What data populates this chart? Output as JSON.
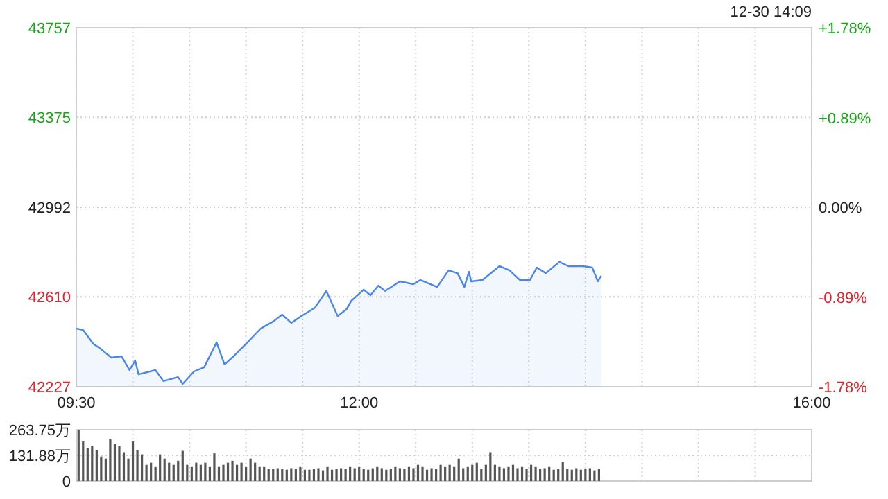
{
  "chart_data": [
    {
      "type": "area",
      "annotations": [
        "12-30 14:09"
      ],
      "x": [
        9.5,
        9.56,
        9.65,
        9.72,
        9.81,
        9.9,
        9.97,
        10.02,
        10.05,
        10.2,
        10.27,
        10.4,
        10.44,
        10.54,
        10.63,
        10.74,
        10.81,
        10.89,
        11.0,
        11.13,
        11.24,
        11.32,
        11.4,
        11.49,
        11.61,
        11.71,
        11.81,
        11.89,
        11.93,
        12.04,
        12.1,
        12.17,
        12.23,
        12.36,
        12.48,
        12.54,
        12.69,
        12.79,
        12.87,
        12.93,
        12.97,
        12.99,
        13.09,
        13.24,
        13.33,
        13.42,
        13.51,
        13.57,
        13.65,
        13.77,
        13.85,
        13.98,
        14.06,
        14.11,
        14.14
      ],
      "series": [
        {
          "color": "#4a86e8",
          "values": [
            42475,
            42469,
            42410,
            42387,
            42351,
            42357,
            42298,
            42339,
            42280,
            42298,
            42251,
            42268,
            42239,
            42292,
            42310,
            42416,
            42322,
            42357,
            42410,
            42475,
            42505,
            42534,
            42499,
            42528,
            42564,
            42635,
            42528,
            42558,
            42593,
            42641,
            42617,
            42658,
            42635,
            42676,
            42664,
            42682,
            42652,
            42723,
            42711,
            42652,
            42717,
            42676,
            42682,
            42741,
            42723,
            42682,
            42682,
            42735,
            42711,
            42759,
            42741,
            42741,
            42735,
            42676,
            42700
          ]
        }
      ],
      "xlim": [
        9.5,
        16
      ],
      "xticks": [
        {
          "value": 9.5,
          "label": "09:30"
        },
        {
          "value": 10,
          "label": null
        },
        {
          "value": 10.5,
          "label": null
        },
        {
          "value": 11,
          "label": null
        },
        {
          "value": 11.5,
          "label": null
        },
        {
          "value": 12,
          "label": "12:00"
        },
        {
          "value": 12.5,
          "label": null
        },
        {
          "value": 13,
          "label": null
        },
        {
          "value": 13.5,
          "label": null
        },
        {
          "value": 14,
          "label": null
        },
        {
          "value": 14.5,
          "label": null
        },
        {
          "value": 15,
          "label": null
        },
        {
          "value": 15.5,
          "label": null
        },
        {
          "value": 16,
          "label": "16:00"
        }
      ],
      "ylim": [
        42227,
        43757
      ],
      "yticks": [
        42227,
        42610,
        42992,
        43375,
        43757
      ],
      "y2lim": [
        -1.78,
        1.78
      ],
      "y2ticks": [
        {
          "value": -1.78,
          "label": "-1.78%"
        },
        {
          "value": -0.89,
          "label": "-0.89%"
        },
        {
          "value": 0,
          "label": "0.00%"
        },
        {
          "value": 0.89,
          "label": "+0.89%"
        },
        {
          "value": 1.78,
          "label": "+1.78%"
        }
      ],
      "grid": true
    },
    {
      "type": "bar",
      "tick_labels": "y",
      "x": [
        9.52,
        9.56,
        9.6,
        9.64,
        9.68,
        9.72,
        9.76,
        9.8,
        9.84,
        9.88,
        9.92,
        9.96,
        10,
        10.04,
        10.08,
        10.12,
        10.16,
        10.2,
        10.24,
        10.28,
        10.32,
        10.36,
        10.4,
        10.44,
        10.48,
        10.52,
        10.56,
        10.6,
        10.64,
        10.68,
        10.72,
        10.76,
        10.8,
        10.84,
        10.88,
        10.92,
        10.96,
        11,
        11.04,
        11.08,
        11.12,
        11.16,
        11.2,
        11.24,
        11.28,
        11.32,
        11.36,
        11.4,
        11.44,
        11.48,
        11.52,
        11.56,
        11.6,
        11.64,
        11.68,
        11.72,
        11.76,
        11.8,
        11.84,
        11.88,
        11.92,
        11.96,
        12,
        12.04,
        12.08,
        12.12,
        12.16,
        12.2,
        12.24,
        12.28,
        12.32,
        12.36,
        12.4,
        12.44,
        12.48,
        12.52,
        12.56,
        12.6,
        12.64,
        12.68,
        12.72,
        12.76,
        12.8,
        12.84,
        12.88,
        12.92,
        12.96,
        13,
        13.04,
        13.08,
        13.12,
        13.16,
        13.2,
        13.24,
        13.28,
        13.32,
        13.36,
        13.4,
        13.44,
        13.48,
        13.52,
        13.56,
        13.6,
        13.64,
        13.68,
        13.72,
        13.76,
        13.8,
        13.84,
        13.88,
        13.92,
        13.96,
        14,
        14.04,
        14.08,
        14.12
      ],
      "series": [
        {
          "color": "#555555",
          "values": [
            263,
            203,
            170,
            181,
            159,
            126,
            115,
            214,
            192,
            181,
            148,
            115,
            203,
            159,
            137,
            83,
            94,
            72,
            137,
            115,
            94,
            83,
            104,
            155,
            83,
            72,
            94,
            83,
            94,
            72,
            142,
            72,
            83,
            94,
            104,
            83,
            94,
            72,
            115,
            94,
            72,
            72,
            62,
            62,
            66,
            62,
            58,
            66,
            62,
            72,
            58,
            58,
            62,
            66,
            55,
            72,
            58,
            62,
            66,
            62,
            72,
            66,
            72,
            62,
            58,
            66,
            72,
            66,
            58,
            62,
            72,
            66,
            62,
            72,
            66,
            83,
            72,
            58,
            66,
            62,
            83,
            72,
            83,
            72,
            115,
            66,
            72,
            83,
            94,
            62,
            83,
            148,
            83,
            72,
            66,
            72,
            83,
            66,
            72,
            62,
            83,
            72,
            62,
            66,
            72,
            58,
            62,
            98,
            62,
            58,
            66,
            58,
            62,
            66,
            55,
            62
          ]
        }
      ],
      "xlim": [
        9.5,
        16
      ],
      "xticks": [
        9.5,
        10,
        10.5,
        11,
        11.5,
        12,
        12.5,
        13,
        13.5,
        14,
        14.5,
        15,
        15.5,
        16
      ],
      "ylim": [
        0,
        263.75
      ],
      "yticks": [
        {
          "value": 0,
          "label": "0"
        },
        {
          "value": 131.88,
          "label": "131.88万"
        },
        {
          "value": 263.75,
          "label": "263.75万"
        }
      ],
      "grid": true
    }
  ]
}
